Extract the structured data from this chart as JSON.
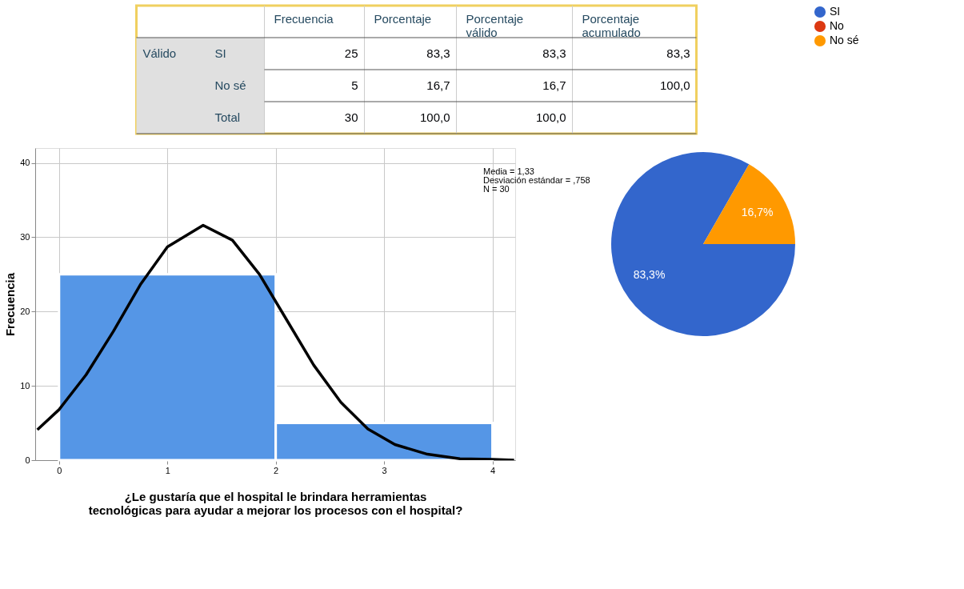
{
  "chart_data": [
    {
      "type": "other",
      "categories": [
        "Frecuencia",
        "Porcentaje",
        "Porcentaje válido",
        "Porcentaje acumulado"
      ],
      "y_categories": [
        "SI",
        "No sé",
        "Total"
      ],
      "annotations": [
        "Válido"
      ],
      "cell_labels": [
        [
          "25",
          "83,3",
          "83,3",
          "83,3"
        ],
        [
          "5",
          "16,7",
          "16,7",
          "100,0"
        ],
        [
          "30",
          "100,0",
          "100,0",
          null
        ]
      ]
    },
    {
      "type": "histogram",
      "bins": [
        0,
        2,
        4
      ],
      "values": [
        25,
        5
      ],
      "color": "#5596e6",
      "xlabel": "¿Le gustaría que el hospital le brindara herramientas tecnológicas para ayudar a mejorar los procesos con el hospital?",
      "ylabel": "Frecuencia",
      "xlim": [
        -0.22,
        4.21
      ],
      "ylim": [
        0,
        42
      ],
      "xticks": [
        0,
        1,
        2,
        3,
        4
      ],
      "yticks": [
        0,
        10,
        20,
        30,
        40
      ],
      "grid": true,
      "legend": false,
      "annotations": [
        "Media = 1,33",
        "Desviación estándar = ,758",
        "N = 30"
      ],
      "series": [
        {
          "type": "line",
          "color": "#000000",
          "x": [
            -0.2,
            0,
            0.25,
            0.5,
            0.75,
            1.0,
            1.33,
            1.6,
            1.85,
            2.1,
            2.35,
            2.6,
            2.85,
            3.1,
            3.4,
            3.7,
            4.0,
            4.2
          ],
          "values": [
            4.1,
            6.8,
            11.5,
            17.3,
            23.6,
            28.7,
            31.6,
            29.6,
            25.0,
            18.9,
            12.8,
            7.8,
            4.2,
            2.1,
            0.8,
            0.2,
            0.1,
            0.0
          ]
        }
      ]
    },
    {
      "type": "pie",
      "categories": [
        "SI",
        "No",
        "No sé"
      ],
      "values": [
        83.3,
        0,
        16.7
      ],
      "colors": [
        "#3366cc",
        "#dc3912",
        "#ff9900"
      ],
      "value_labels": [
        "83,3%",
        null,
        "16,7%"
      ],
      "legend": "right"
    }
  ]
}
